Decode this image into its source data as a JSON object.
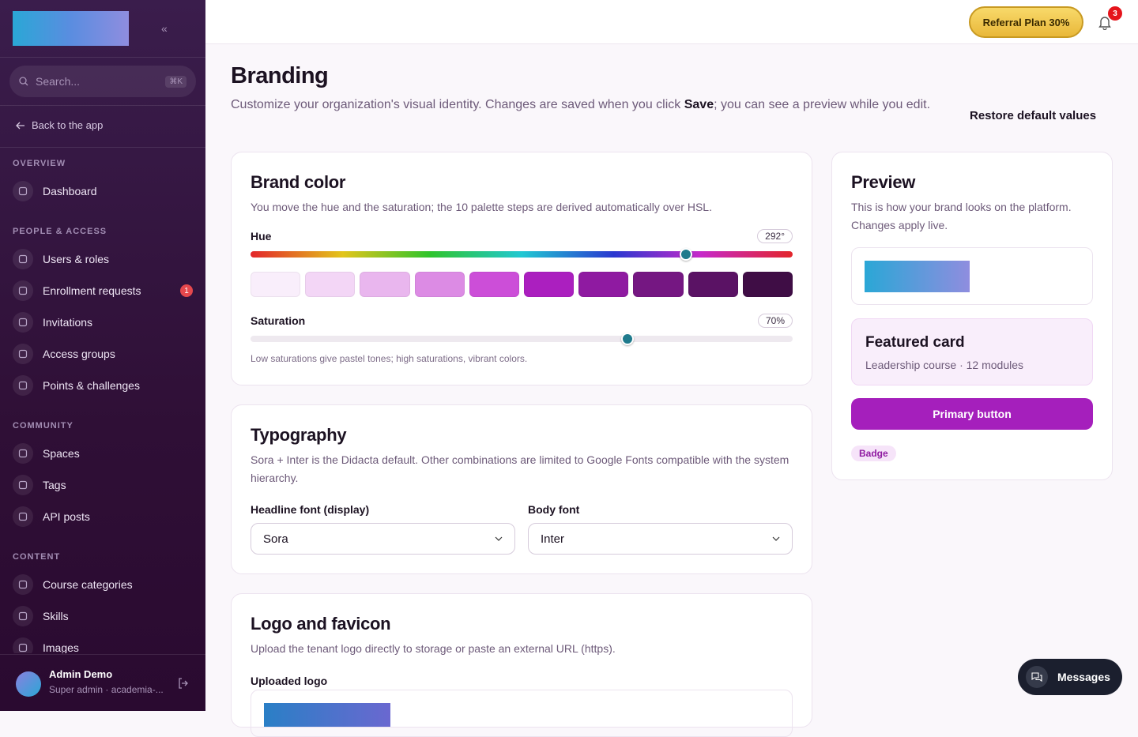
{
  "sidebar": {
    "collapse": "«",
    "search": {
      "placeholder": "Search...",
      "shortcut": "⌘K"
    },
    "back": "Back to the app",
    "sections": [
      {
        "title": "OVERVIEW",
        "items": [
          {
            "label": "Dashboard"
          }
        ]
      },
      {
        "title": "PEOPLE & ACCESS",
        "items": [
          {
            "label": "Users & roles"
          },
          {
            "label": "Enrollment requests",
            "badge": "1"
          },
          {
            "label": "Invitations"
          },
          {
            "label": "Access groups"
          },
          {
            "label": "Points & challenges"
          }
        ]
      },
      {
        "title": "COMMUNITY",
        "items": [
          {
            "label": "Spaces"
          },
          {
            "label": "Tags"
          },
          {
            "label": "API posts"
          }
        ]
      },
      {
        "title": "CONTENT",
        "items": [
          {
            "label": "Course categories"
          },
          {
            "label": "Skills"
          },
          {
            "label": "Images"
          }
        ]
      }
    ],
    "user": {
      "name": "Admin Demo",
      "role": "Super admin · academia-..."
    }
  },
  "topbar": {
    "referral": "Referral Plan 30%",
    "notifications": "3"
  },
  "header": {
    "title": "Branding",
    "description": [
      "Customize your organization's visual identity. Changes are saved when you click ",
      "Save",
      "; you can see a preview while you edit."
    ],
    "restore": "Restore default values"
  },
  "brand_color": {
    "title": "Brand color",
    "description": "You move the hue and the saturation; the 10 palette steps are derived automatically over HSL.",
    "hue_label": "Hue",
    "hue_value": "292°",
    "palette": [
      "#f9eefb",
      "#f3d6f6",
      "#e9b6ee",
      "#dc8be4",
      "#cc4ed8",
      "#ab1fbf",
      "#8f1aa1",
      "#751782",
      "#5a1264",
      "#3f0d45"
    ],
    "saturation_label": "Saturation",
    "saturation_value": "70%",
    "hint": "Low saturations give pastel tones; high saturations, vibrant colors."
  },
  "typography": {
    "title": "Typography",
    "description": "Sora + Inter is the Didacta default. Other combinations are limited to Google Fonts compatible with the system hierarchy.",
    "headline_label": "Headline font (display)",
    "headline_value": "Sora",
    "body_label": "Body font",
    "body_value": "Inter"
  },
  "logo": {
    "title": "Logo and favicon",
    "description": "Upload the tenant logo directly to storage or paste an external URL (https).",
    "uploaded_label": "Uploaded logo"
  },
  "preview": {
    "title": "Preview",
    "description": "This is how your brand looks on the platform. Changes apply live.",
    "featured_title": "Featured card",
    "featured_subtitle": "Leadership course · 12 modules",
    "button": "Primary button",
    "badge": "Badge"
  },
  "messages": "Messages"
}
